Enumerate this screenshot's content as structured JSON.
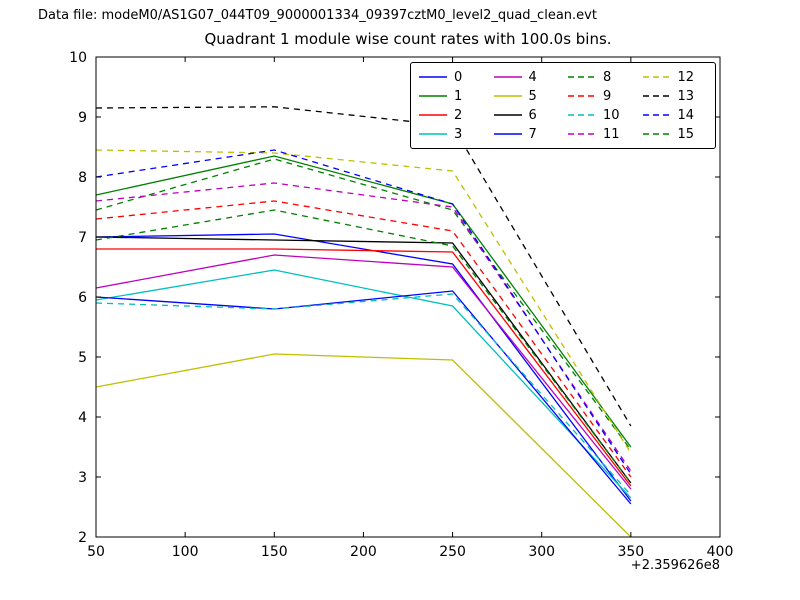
{
  "header": {
    "data_file_label": "Data file: modeM0/AS1G07_044T09_9000001334_09397cztM0_level2_quad_clean.evt"
  },
  "chart_data": {
    "type": "line",
    "title": "Quadrant 1 module wise count rates with 100.0s bins.",
    "xlabel": "",
    "ylabel": "",
    "x_offset_label": "+2.359626e8",
    "x": [
      50,
      150,
      250,
      350
    ],
    "xlim": [
      50,
      400
    ],
    "ylim": [
      2,
      10
    ],
    "xticks": [
      50,
      100,
      150,
      200,
      250,
      300,
      350,
      400
    ],
    "yticks": [
      2,
      3,
      4,
      5,
      6,
      7,
      8,
      9,
      10
    ],
    "grid": false,
    "legend_position": "upper center-right, 4 columns",
    "series": [
      {
        "name": "0",
        "color": "#0000ff",
        "dash": false,
        "values": [
          7.0,
          7.05,
          6.55,
          2.6
        ]
      },
      {
        "name": "1",
        "color": "#008000",
        "dash": false,
        "values": [
          7.7,
          8.35,
          7.55,
          3.5
        ]
      },
      {
        "name": "2",
        "color": "#ff0000",
        "dash": false,
        "values": [
          6.8,
          6.8,
          6.75,
          2.85
        ]
      },
      {
        "name": "3",
        "color": "#00bfbf",
        "dash": false,
        "values": [
          5.95,
          6.45,
          5.85,
          2.65
        ]
      },
      {
        "name": "4",
        "color": "#bf00bf",
        "dash": false,
        "values": [
          6.15,
          6.7,
          6.5,
          2.8
        ]
      },
      {
        "name": "5",
        "color": "#bfbf00",
        "dash": false,
        "values": [
          4.5,
          5.05,
          4.95,
          2.0
        ]
      },
      {
        "name": "6",
        "color": "#000000",
        "dash": false,
        "values": [
          7.0,
          6.95,
          6.9,
          2.9
        ]
      },
      {
        "name": "7",
        "color": "#0000ff",
        "dash": false,
        "values": [
          6.0,
          5.8,
          6.1,
          2.55
        ]
      },
      {
        "name": "8",
        "color": "#008000",
        "dash": true,
        "values": [
          7.45,
          8.3,
          7.45,
          3.45
        ]
      },
      {
        "name": "9",
        "color": "#ff0000",
        "dash": true,
        "values": [
          7.3,
          7.6,
          7.1,
          3.0
        ]
      },
      {
        "name": "10",
        "color": "#00bfbf",
        "dash": true,
        "values": [
          5.9,
          5.8,
          6.05,
          2.7
        ]
      },
      {
        "name": "11",
        "color": "#bf00bf",
        "dash": true,
        "values": [
          7.6,
          7.9,
          7.5,
          3.1
        ]
      },
      {
        "name": "12",
        "color": "#bfbf00",
        "dash": true,
        "values": [
          8.45,
          8.4,
          8.1,
          3.4
        ]
      },
      {
        "name": "13",
        "color": "#000000",
        "dash": true,
        "values": [
          9.15,
          9.17,
          8.85,
          3.85
        ]
      },
      {
        "name": "14",
        "color": "#0000ff",
        "dash": true,
        "values": [
          8.0,
          8.45,
          7.55,
          3.05
        ]
      },
      {
        "name": "15",
        "color": "#008000",
        "dash": true,
        "values": [
          6.95,
          7.45,
          6.85,
          2.9
        ]
      }
    ]
  }
}
